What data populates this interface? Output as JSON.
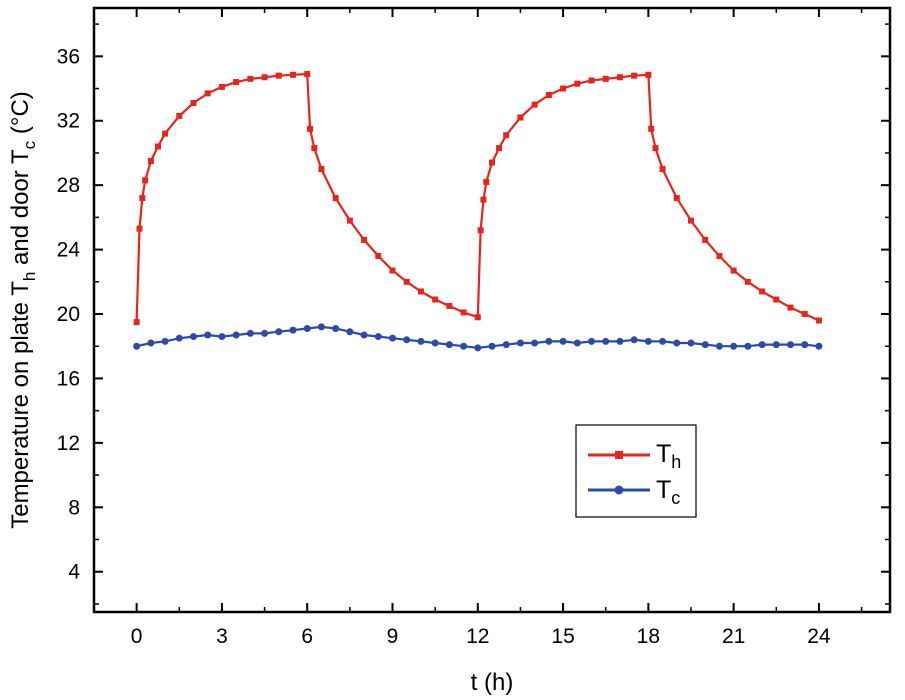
{
  "chart_data": {
    "type": "line",
    "title": "",
    "xlabel": "t (h)",
    "ylabel_main": "Temperature on plate T",
    "ylabel_sub1": "h",
    "ylabel_mid": " and door T",
    "ylabel_sub2": "c",
    "ylabel_end": " (°C)",
    "xlim": [
      -1.5,
      26.5
    ],
    "ylim": [
      1.5,
      39
    ],
    "xticks": [
      0,
      3,
      6,
      9,
      12,
      15,
      18,
      21,
      24
    ],
    "yticks": [
      4,
      8,
      12,
      16,
      20,
      24,
      28,
      32,
      36
    ],
    "grid": false,
    "legend_position": "bottom-right (inside plot)",
    "series": [
      {
        "name": "T",
        "name_sub": "h",
        "color": "#e8241c",
        "marker": "square",
        "x": [
          0,
          0.1,
          0.2,
          0.3,
          0.5,
          0.75,
          1,
          1.5,
          2,
          2.5,
          3,
          3.5,
          4,
          4.5,
          5,
          5.5,
          6,
          6.1,
          6.25,
          6.5,
          7,
          7.5,
          8,
          8.5,
          9,
          9.5,
          10,
          10.5,
          11,
          11.5,
          12,
          12.1,
          12.2,
          12.3,
          12.5,
          12.75,
          13,
          13.5,
          14,
          14.5,
          15,
          15.5,
          16,
          16.5,
          17,
          17.5,
          18,
          18.1,
          18.25,
          18.5,
          19,
          19.5,
          20,
          20.5,
          21,
          21.5,
          22,
          22.5,
          23,
          23.5,
          24
        ],
        "y": [
          19.5,
          25.3,
          27.2,
          28.3,
          29.5,
          30.4,
          31.2,
          32.3,
          33.1,
          33.7,
          34.1,
          34.4,
          34.6,
          34.7,
          34.8,
          34.85,
          34.9,
          31.5,
          30.3,
          29,
          27.2,
          25.8,
          24.6,
          23.6,
          22.7,
          22,
          21.4,
          20.9,
          20.5,
          20.1,
          19.8,
          25.2,
          27.1,
          28.2,
          29.4,
          30.3,
          31.1,
          32.2,
          33,
          33.6,
          34,
          34.3,
          34.5,
          34.6,
          34.7,
          34.8,
          34.85,
          31.5,
          30.3,
          29,
          27.2,
          25.8,
          24.6,
          23.6,
          22.7,
          22,
          21.4,
          20.9,
          20.4,
          20,
          19.6
        ]
      },
      {
        "name": "T",
        "name_sub": "c",
        "color": "#2e4aa8",
        "marker": "circle",
        "x": [
          0,
          0.5,
          1,
          1.5,
          2,
          2.5,
          3,
          3.5,
          4,
          4.5,
          5,
          5.5,
          6,
          6.5,
          7,
          7.5,
          8,
          8.5,
          9,
          9.5,
          10,
          10.5,
          11,
          11.5,
          12,
          12.5,
          13,
          13.5,
          14,
          14.5,
          15,
          15.5,
          16,
          16.5,
          17,
          17.5,
          18,
          18.5,
          19,
          19.5,
          20,
          20.5,
          21,
          21.5,
          22,
          22.5,
          23,
          23.5,
          24
        ],
        "y": [
          18.0,
          18.2,
          18.3,
          18.5,
          18.6,
          18.7,
          18.6,
          18.7,
          18.8,
          18.8,
          18.9,
          19.0,
          19.1,
          19.2,
          19.1,
          18.9,
          18.7,
          18.6,
          18.5,
          18.4,
          18.3,
          18.2,
          18.1,
          18.0,
          17.9,
          18.0,
          18.1,
          18.2,
          18.2,
          18.3,
          18.3,
          18.2,
          18.3,
          18.3,
          18.3,
          18.4,
          18.3,
          18.3,
          18.2,
          18.2,
          18.1,
          18.0,
          18.0,
          18.0,
          18.1,
          18.1,
          18.1,
          18.1,
          18.0
        ]
      }
    ]
  }
}
